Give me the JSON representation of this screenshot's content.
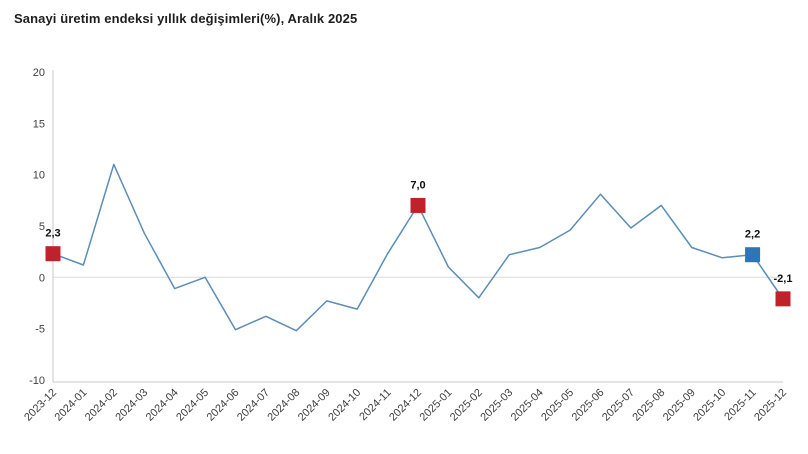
{
  "title": "Sanayi üretim endeksi yıllık değişimleri(%), Aralık 2025",
  "chart_data": {
    "type": "line",
    "title": "Sanayi üretim endeksi yıllık değişimleri(%), Aralık 2025",
    "categories": [
      "2023-12",
      "2024-01",
      "2024-02",
      "2024-03",
      "2024-04",
      "2024-05",
      "2024-06",
      "2024-07",
      "2024-08",
      "2024-09",
      "2024-10",
      "2024-11",
      "2024-12",
      "2025-01",
      "2025-02",
      "2025-03",
      "2025-04",
      "2025-05",
      "2025-06",
      "2025-07",
      "2025-08",
      "2025-09",
      "2025-10",
      "2025-11",
      "2025-12"
    ],
    "values": [
      2.3,
      1.2,
      11.0,
      4.3,
      -1.1,
      0.0,
      -5.1,
      -3.8,
      -5.2,
      -2.3,
      -3.1,
      2.3,
      7.0,
      1.0,
      -2.0,
      2.2,
      2.9,
      4.6,
      8.1,
      4.8,
      7.0,
      2.9,
      1.9,
      2.2,
      -2.1
    ],
    "xlabel": "",
    "ylabel": "",
    "ylim": [
      -10,
      20
    ],
    "yticks": [
      "20",
      "15",
      "10",
      "5",
      "0",
      "-5",
      "-10"
    ],
    "ytick_values": [
      20,
      15,
      10,
      5,
      0,
      -5,
      -10
    ],
    "grid": "zero-line-only",
    "legend": "none",
    "line_color": "#5b8db8",
    "axis_color": "#c9c9c9",
    "zeroline_color": "#d9d9d9",
    "tick_text_color": "#404040",
    "annotation_text_color": "#111111",
    "annotations": [
      {
        "category": "2023-12",
        "label": "2,3",
        "value": 2.3,
        "marker_color": "#c0222c"
      },
      {
        "category": "2024-12",
        "label": "7,0",
        "value": 7.0,
        "marker_color": "#c0222c"
      },
      {
        "category": "2025-11",
        "label": "2,2",
        "value": 2.2,
        "marker_color": "#2e75b6"
      },
      {
        "category": "2025-12",
        "label": "-2,1",
        "value": -2.1,
        "marker_color": "#c0222c"
      }
    ]
  }
}
